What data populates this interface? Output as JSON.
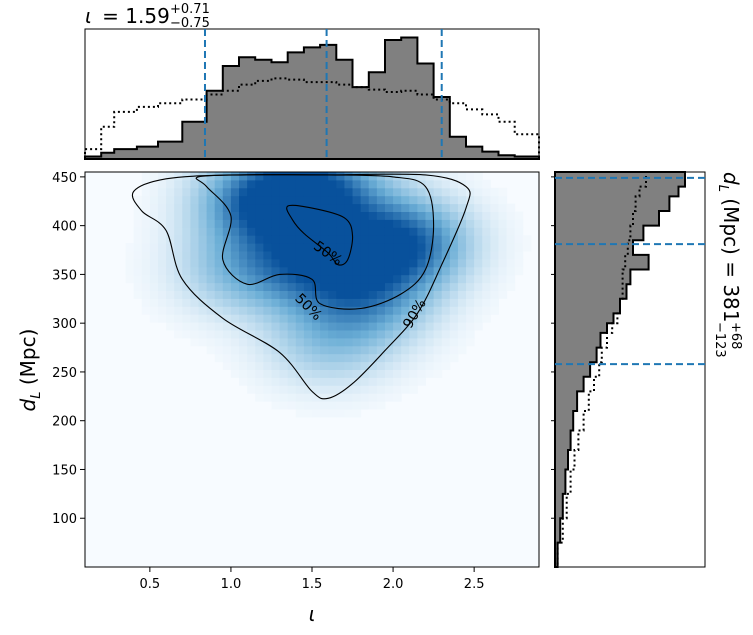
{
  "chart_data": {
    "type": "heatmap",
    "title": {
      "top": {
        "symbol": "ι",
        "value": "= 1.59",
        "plus": "+0.71",
        "minus": "−0.75"
      },
      "right": {
        "prefix": "d",
        "sub": "L",
        "rest": " (Mpc) = 381",
        "plus": "+68",
        "minus": "−123"
      }
    },
    "xlabel": "ι",
    "ylabel": {
      "main": "d",
      "sub": "L",
      "rest": " (Mpc)"
    },
    "xlim": [
      0.1,
      2.9
    ],
    "ylim": [
      50,
      455
    ],
    "xticks": [
      "0.5",
      "1.0",
      "1.5",
      "2.0",
      "2.5"
    ],
    "yticks": [
      "100",
      "150",
      "200",
      "250",
      "300",
      "350",
      "400",
      "450"
    ],
    "colormap": {
      "low": "#f7fbff",
      "mid": "#6baed6",
      "high": "#08519c"
    },
    "density_peaks": [
      {
        "x": 2.05,
        "y": 382,
        "weight": 1.0
      },
      {
        "x": 1.2,
        "y": 425,
        "weight": 0.9
      },
      {
        "x": 1.55,
        "y": 435,
        "weight": 0.85
      },
      {
        "x": 1.5,
        "y": 360,
        "weight": 0.7
      },
      {
        "x": 1.85,
        "y": 325,
        "weight": 0.55
      },
      {
        "x": 1.05,
        "y": 355,
        "weight": 0.4
      },
      {
        "x": 1.6,
        "y": 280,
        "weight": 0.35
      }
    ],
    "contours": [
      {
        "label": "90%",
        "points": [
          [
            0.45,
            415
          ],
          [
            0.4,
            435
          ],
          [
            0.6,
            448
          ],
          [
            1.0,
            452
          ],
          [
            1.6,
            452
          ],
          [
            2.2,
            452
          ],
          [
            2.45,
            440
          ],
          [
            2.45,
            418
          ],
          [
            2.3,
            360
          ],
          [
            2.15,
            310
          ],
          [
            1.95,
            272
          ],
          [
            1.75,
            238
          ],
          [
            1.6,
            223
          ],
          [
            1.5,
            230
          ],
          [
            1.3,
            270
          ],
          [
            0.95,
            305
          ],
          [
            0.7,
            345
          ],
          [
            0.6,
            395
          ]
        ]
      },
      {
        "label": "50%",
        "points": [
          [
            0.85,
            440
          ],
          [
            0.8,
            450
          ],
          [
            1.1,
            452
          ],
          [
            1.6,
            452
          ],
          [
            2.0,
            450
          ],
          [
            2.2,
            440
          ],
          [
            2.25,
            400
          ],
          [
            2.2,
            355
          ],
          [
            2.05,
            330
          ],
          [
            1.8,
            315
          ],
          [
            1.55,
            320
          ],
          [
            1.5,
            345
          ],
          [
            1.3,
            350
          ],
          [
            1.1,
            340
          ],
          [
            0.95,
            365
          ],
          [
            1.0,
            410
          ]
        ]
      },
      {
        "label": "50%",
        "points": [
          [
            1.35,
            420
          ],
          [
            1.5,
            418
          ],
          [
            1.7,
            408
          ],
          [
            1.75,
            390
          ],
          [
            1.72,
            365
          ],
          [
            1.66,
            360
          ],
          [
            1.6,
            372
          ],
          [
            1.45,
            392
          ],
          [
            1.38,
            406
          ]
        ]
      }
    ],
    "contour_label_positions": [
      {
        "text": "90%",
        "x": 2.13,
        "y": 310,
        "angle": -60
      },
      {
        "text": "50%",
        "x": 1.6,
        "y": 372,
        "angle": 35
      },
      {
        "text": "50%",
        "x": 1.48,
        "y": 317,
        "angle": 45
      }
    ],
    "top_marginal": {
      "credible_lines": [
        0.84,
        1.59,
        2.3
      ],
      "bins_x": [
        0.1,
        0.2,
        0.28,
        0.42,
        0.55,
        0.7,
        0.85,
        0.95,
        1.05,
        1.15,
        1.25,
        1.35,
        1.45,
        1.55,
        1.65,
        1.75,
        1.85,
        1.95,
        2.05,
        2.15,
        2.25,
        2.35,
        2.45,
        2.55,
        2.65,
        2.75,
        2.9
      ],
      "bins_y": [
        0.02,
        0.05,
        0.08,
        0.1,
        0.14,
        0.3,
        0.55,
        0.75,
        0.82,
        0.8,
        0.78,
        0.86,
        0.9,
        0.92,
        0.8,
        0.58,
        0.7,
        0.96,
        0.98,
        0.77,
        0.5,
        0.18,
        0.1,
        0.06,
        0.03,
        0.02
      ],
      "ref_y": [
        0.08,
        0.26,
        0.38,
        0.42,
        0.45,
        0.48,
        0.52,
        0.55,
        0.6,
        0.63,
        0.65,
        0.64,
        0.62,
        0.62,
        0.6,
        0.58,
        0.56,
        0.54,
        0.55,
        0.52,
        0.48,
        0.45,
        0.4,
        0.36,
        0.3,
        0.2
      ]
    },
    "right_marginal": {
      "credible_lines": [
        258,
        381,
        449
      ],
      "bins_y": [
        50,
        75,
        100,
        125,
        150,
        170,
        190,
        210,
        230,
        245,
        260,
        275,
        290,
        300,
        310,
        325,
        340,
        355,
        370,
        385,
        400,
        415,
        430,
        440,
        455
      ],
      "bins_x": [
        0.02,
        0.04,
        0.06,
        0.08,
        0.1,
        0.12,
        0.14,
        0.17,
        0.22,
        0.27,
        0.32,
        0.35,
        0.4,
        0.45,
        0.5,
        0.55,
        0.58,
        0.72,
        0.6,
        0.68,
        0.8,
        0.88,
        0.95,
        1.0
      ],
      "ref_x": [
        0.02,
        0.06,
        0.09,
        0.12,
        0.15,
        0.18,
        0.22,
        0.26,
        0.3,
        0.34,
        0.36,
        0.4,
        0.44,
        0.48,
        0.5,
        0.52,
        0.52,
        0.54,
        0.56,
        0.58,
        0.6,
        0.62,
        0.65,
        0.7
      ]
    }
  }
}
